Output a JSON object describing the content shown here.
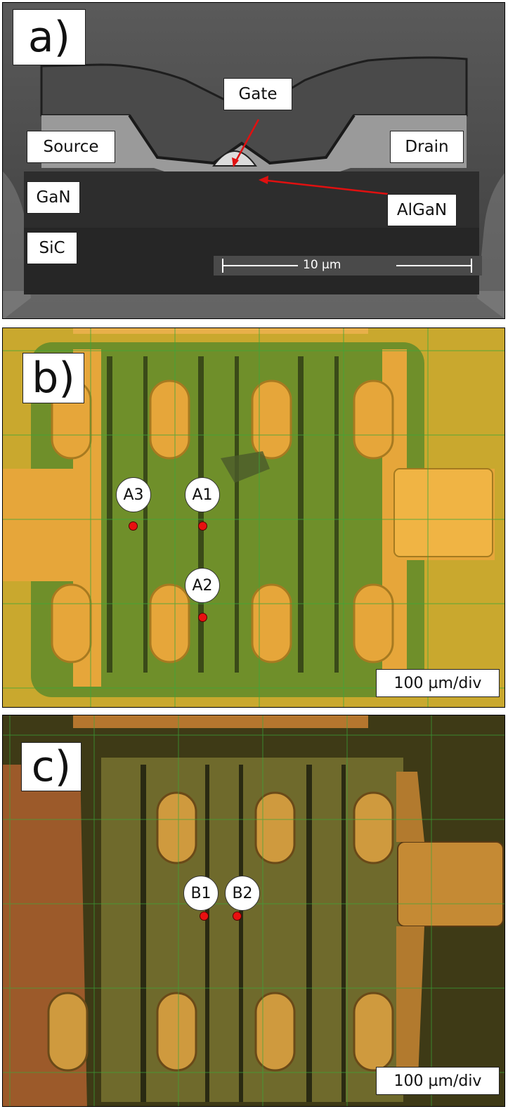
{
  "panels": {
    "a": {
      "letter": "a)",
      "labels": {
        "gate": "Gate",
        "source": "Source",
        "drain": "Drain",
        "gan": "GaN",
        "algan": "AlGaN",
        "sic": "SiC"
      },
      "scale_bar": "10 µm"
    },
    "b": {
      "letter": "b)",
      "points": [
        "A3",
        "A1",
        "A2"
      ],
      "scale": "100 µm/div"
    },
    "c": {
      "letter": "c)",
      "points": [
        "B1",
        "B2"
      ],
      "scale": "100 µm/div"
    }
  },
  "colors": {
    "marker": "#e81010",
    "grid": "#3aa83a",
    "pad_gold": "#e6a63a",
    "substrate_green": "#6f8f2a"
  }
}
